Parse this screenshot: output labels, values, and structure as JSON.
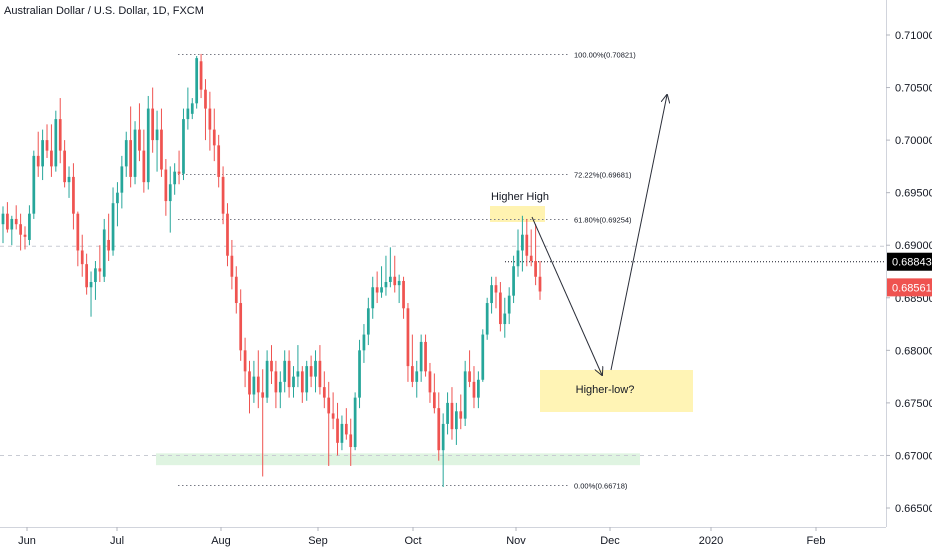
{
  "header": {
    "title": "Australian Dollar / U.S. Dollar, 1D, FXCM"
  },
  "colors": {
    "up": "#26a69a",
    "down": "#ef5350",
    "fib_line": "#787b86",
    "highlight": "#fff2a8",
    "support_zone": "#d9f2dc",
    "grid": "#c8cbd3",
    "arrow": "#2a2e39",
    "last_price_bg": "#ef5350",
    "crosshair_bg": "#000000"
  },
  "chart_data": {
    "type": "candlestick",
    "x_axis": {
      "ticks": [
        "Jun",
        "Jul",
        "Aug",
        "Sep",
        "Oct",
        "Nov",
        "Dec",
        "2020",
        "Feb"
      ]
    },
    "y_axis": {
      "ticks": [
        "0.71000",
        "0.70500",
        "0.70000",
        "0.69500",
        "0.69000",
        "0.68500",
        "0.68000",
        "0.67500",
        "0.67000",
        "0.66500"
      ],
      "range": [
        0.6636,
        0.713
      ]
    },
    "price_labels": {
      "current": "0.68843",
      "last": "0.68561"
    },
    "fib_levels": [
      {
        "label": "100.00%(0.70821)",
        "value": 0.70821
      },
      {
        "label": "72.22%(0.69681)",
        "value": 0.69681
      },
      {
        "label": "61.80%(0.69254)",
        "value": 0.69254
      },
      {
        "label": "0.00%(0.66718)",
        "value": 0.66718
      }
    ],
    "annotations": {
      "higher_high": "Higher High",
      "higher_low": "Higher-low?"
    },
    "reference_levels": [
      0.6899,
      0.67
    ],
    "candles": [
      [
        0.692,
        0.6937,
        0.6902,
        0.693
      ],
      [
        0.693,
        0.6941,
        0.6912,
        0.6915
      ],
      [
        0.6915,
        0.6928,
        0.69,
        0.6925
      ],
      [
        0.6925,
        0.6938,
        0.6915,
        0.692
      ],
      [
        0.692,
        0.693,
        0.6895,
        0.691
      ],
      [
        0.691,
        0.6918,
        0.6896,
        0.6908
      ],
      [
        0.6905,
        0.6938,
        0.69,
        0.693
      ],
      [
        0.693,
        0.699,
        0.6925,
        0.6985
      ],
      [
        0.6985,
        0.7008,
        0.6965,
        0.6975
      ],
      [
        0.6975,
        0.701,
        0.6962,
        0.7
      ],
      [
        0.7,
        0.7015,
        0.6983,
        0.699
      ],
      [
        0.699,
        0.7015,
        0.6965,
        0.6975
      ],
      [
        0.6975,
        0.7028,
        0.697,
        0.702
      ],
      [
        0.702,
        0.704,
        0.6978,
        0.699
      ],
      [
        0.699,
        0.7,
        0.6955,
        0.696
      ],
      [
        0.696,
        0.6975,
        0.6945,
        0.6965
      ],
      [
        0.6965,
        0.6978,
        0.6915,
        0.693
      ],
      [
        0.693,
        0.6932,
        0.688,
        0.6895
      ],
      [
        0.6895,
        0.691,
        0.687,
        0.6882
      ],
      [
        0.6882,
        0.6892,
        0.6853,
        0.686
      ],
      [
        0.686,
        0.6875,
        0.6832,
        0.6865
      ],
      [
        0.6865,
        0.6885,
        0.6848,
        0.6878
      ],
      [
        0.6878,
        0.69,
        0.6865,
        0.6875
      ],
      [
        0.687,
        0.6925,
        0.6865,
        0.6915
      ],
      [
        0.6905,
        0.693,
        0.6885,
        0.6895
      ],
      [
        0.6895,
        0.6955,
        0.689,
        0.694
      ],
      [
        0.694,
        0.696,
        0.6918,
        0.695
      ],
      [
        0.695,
        0.6985,
        0.6935,
        0.6975
      ],
      [
        0.6975,
        0.7008,
        0.6965,
        0.7
      ],
      [
        0.7,
        0.7032,
        0.6955,
        0.6965
      ],
      [
        0.6965,
        0.7018,
        0.6958,
        0.701
      ],
      [
        0.701,
        0.7035,
        0.698,
        0.699
      ],
      [
        0.699,
        0.701,
        0.695,
        0.696
      ],
      [
        0.696,
        0.7042,
        0.6953,
        0.703
      ],
      [
        0.703,
        0.705,
        0.6988,
        0.7
      ],
      [
        0.7,
        0.7028,
        0.697,
        0.701
      ],
      [
        0.701,
        0.703,
        0.6965,
        0.6972
      ],
      [
        0.6972,
        0.6982,
        0.6928,
        0.6942
      ],
      [
        0.6942,
        0.6975,
        0.6912,
        0.6958
      ],
      [
        0.6958,
        0.6978,
        0.6948,
        0.697
      ],
      [
        0.697,
        0.699,
        0.6958,
        0.6968
      ],
      [
        0.6968,
        0.703,
        0.6962,
        0.702
      ],
      [
        0.702,
        0.705,
        0.701,
        0.703
      ],
      [
        0.7025,
        0.704,
        0.702,
        0.7035
      ],
      [
        0.7035,
        0.708,
        0.703,
        0.7078
      ],
      [
        0.7075,
        0.7082,
        0.704,
        0.7048
      ],
      [
        0.7048,
        0.7058,
        0.7,
        0.703
      ],
      [
        0.703,
        0.7046,
        0.699,
        0.701
      ],
      [
        0.701,
        0.703,
        0.698,
        0.6995
      ],
      [
        0.6995,
        0.7005,
        0.6955,
        0.6965
      ],
      [
        0.6965,
        0.6975,
        0.692,
        0.693
      ],
      [
        0.693,
        0.694,
        0.688,
        0.689
      ],
      [
        0.689,
        0.6905,
        0.6858,
        0.687
      ],
      [
        0.687,
        0.688,
        0.6835,
        0.6845
      ],
      [
        0.6845,
        0.6858,
        0.679,
        0.68
      ],
      [
        0.68,
        0.6812,
        0.6765,
        0.678
      ],
      [
        0.678,
        0.679,
        0.674,
        0.6758
      ],
      [
        0.6758,
        0.679,
        0.675,
        0.6775
      ],
      [
        0.6775,
        0.68,
        0.6745,
        0.676
      ],
      [
        0.676,
        0.6782,
        0.668,
        0.6755
      ],
      [
        0.6755,
        0.68,
        0.675,
        0.679
      ],
      [
        0.679,
        0.6805,
        0.6768,
        0.678
      ],
      [
        0.678,
        0.679,
        0.6745,
        0.676
      ],
      [
        0.676,
        0.678,
        0.6745,
        0.677
      ],
      [
        0.677,
        0.68,
        0.676,
        0.679
      ],
      [
        0.679,
        0.68,
        0.6755,
        0.6765
      ],
      [
        0.6765,
        0.6785,
        0.6755,
        0.6775
      ],
      [
        0.6775,
        0.6805,
        0.6765,
        0.678
      ],
      [
        0.678,
        0.6785,
        0.675,
        0.676
      ],
      [
        0.676,
        0.679,
        0.6752,
        0.6785
      ],
      [
        0.6785,
        0.6795,
        0.6765,
        0.6775
      ],
      [
        0.6775,
        0.68,
        0.676,
        0.679
      ],
      [
        0.679,
        0.6805,
        0.6758,
        0.6765
      ],
      [
        0.6765,
        0.678,
        0.6745,
        0.6755
      ],
      [
        0.6755,
        0.677,
        0.669,
        0.674
      ],
      [
        0.674,
        0.676,
        0.6725,
        0.6735
      ],
      [
        0.6735,
        0.675,
        0.67,
        0.6712
      ],
      [
        0.6712,
        0.6738,
        0.6705,
        0.673
      ],
      [
        0.673,
        0.6745,
        0.6715,
        0.672
      ],
      [
        0.672,
        0.6735,
        0.669,
        0.6708
      ],
      [
        0.6708,
        0.676,
        0.6705,
        0.6755
      ],
      [
        0.6755,
        0.681,
        0.6745,
        0.68
      ],
      [
        0.68,
        0.6825,
        0.6788,
        0.6815
      ],
      [
        0.6815,
        0.685,
        0.6805,
        0.684
      ],
      [
        0.684,
        0.687,
        0.683,
        0.686
      ],
      [
        0.686,
        0.6875,
        0.6845,
        0.6855
      ],
      [
        0.6855,
        0.688,
        0.685,
        0.686
      ],
      [
        0.686,
        0.689,
        0.6852,
        0.6865
      ],
      [
        0.6865,
        0.6898,
        0.686,
        0.687
      ],
      [
        0.687,
        0.689,
        0.6855,
        0.6862
      ],
      [
        0.6862,
        0.6872,
        0.6845,
        0.6866
      ],
      [
        0.6866,
        0.687,
        0.683,
        0.684
      ],
      [
        0.684,
        0.6845,
        0.677,
        0.6785
      ],
      [
        0.6785,
        0.6815,
        0.6765,
        0.677
      ],
      [
        0.677,
        0.679,
        0.6755,
        0.678
      ],
      [
        0.678,
        0.6815,
        0.677,
        0.6808
      ],
      [
        0.6808,
        0.6815,
        0.6775,
        0.678
      ],
      [
        0.678,
        0.6788,
        0.675,
        0.676
      ],
      [
        0.676,
        0.6778,
        0.674,
        0.6745
      ],
      [
        0.6745,
        0.676,
        0.6695,
        0.6705
      ],
      [
        0.6705,
        0.674,
        0.667,
        0.673
      ],
      [
        0.673,
        0.676,
        0.672,
        0.675
      ],
      [
        0.675,
        0.6765,
        0.6715,
        0.6725
      ],
      [
        0.6725,
        0.675,
        0.671,
        0.6742
      ],
      [
        0.6742,
        0.6758,
        0.6725,
        0.6735
      ],
      [
        0.6735,
        0.679,
        0.6728,
        0.678
      ],
      [
        0.678,
        0.68,
        0.6765,
        0.677
      ],
      [
        0.677,
        0.6785,
        0.6745,
        0.6755
      ],
      [
        0.6755,
        0.678,
        0.6745,
        0.6772
      ],
      [
        0.6772,
        0.682,
        0.677,
        0.6815
      ],
      [
        0.6815,
        0.685,
        0.681,
        0.6845
      ],
      [
        0.6845,
        0.687,
        0.6835,
        0.6862
      ],
      [
        0.6862,
        0.687,
        0.684,
        0.6855
      ],
      [
        0.6855,
        0.6865,
        0.6818,
        0.6825
      ],
      [
        0.6825,
        0.685,
        0.6812,
        0.6835
      ],
      [
        0.6835,
        0.686,
        0.6825,
        0.6852
      ],
      [
        0.6852,
        0.689,
        0.6845,
        0.688
      ],
      [
        0.688,
        0.6915,
        0.687,
        0.6895
      ],
      [
        0.6895,
        0.6928,
        0.6875,
        0.691
      ],
      [
        0.691,
        0.6925,
        0.688,
        0.689
      ],
      [
        0.689,
        0.6915,
        0.688,
        0.6885
      ],
      [
        0.6885,
        0.692,
        0.6862,
        0.687
      ],
      [
        0.687,
        0.6885,
        0.6848,
        0.6856
      ]
    ]
  }
}
